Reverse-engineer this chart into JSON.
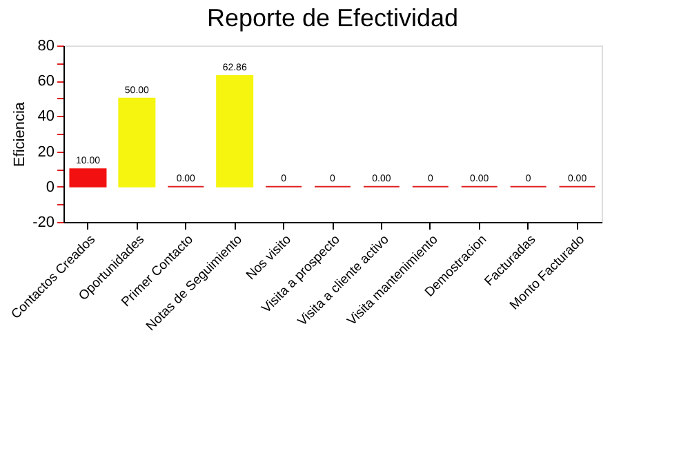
{
  "chart_data": {
    "type": "bar",
    "title": "Reporte de Efectividad",
    "ylabel": "Eficiencia",
    "categories": [
      "Contactos Creados",
      "Oportunidades",
      "Primer Contacto",
      "Notas de Seguimiento",
      "Nos visito",
      "Visita a prospecto",
      "Visita a cliente activo",
      "Visita mantenimiento",
      "Demostracion",
      "Facturadas",
      "Monto Facturado"
    ],
    "values": [
      10,
      50,
      0,
      62.86,
      0,
      0,
      0,
      0,
      0,
      0,
      0
    ],
    "value_labels": [
      "10.00",
      "50.00",
      "0.00",
      "62.86",
      "0",
      "0",
      "0.00",
      "0",
      "0.00",
      "0",
      "0.00"
    ],
    "colors": [
      "#f21010",
      "#f5f50f",
      "#e02020",
      "#f5f50f",
      "#e02020",
      "#e02020",
      "#e02020",
      "#e02020",
      "#e02020",
      "#e02020",
      "#e02020"
    ],
    "ylim": [
      -20,
      80
    ],
    "yticks": [
      -20,
      {
        "value": -10,
        "label": null
      },
      0,
      {
        "value": 10,
        "label": null
      },
      20,
      {
        "value": 30,
        "label": null
      },
      40,
      {
        "value": 50,
        "label": null
      },
      60,
      {
        "value": 70,
        "label": null
      },
      80
    ],
    "grid": false
  }
}
